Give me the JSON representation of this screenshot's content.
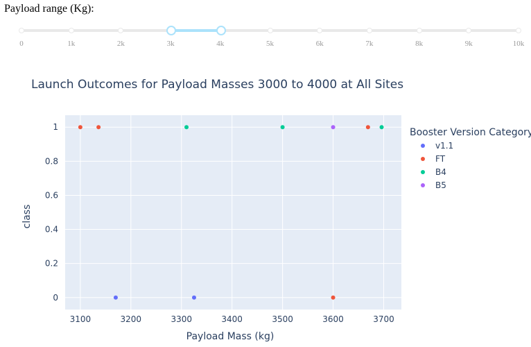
{
  "slider": {
    "label": "Payload range (Kg):",
    "min": 0,
    "max": 10000,
    "selected": [
      3000,
      4000
    ],
    "marks": [
      "0",
      "1k",
      "2k",
      "3k",
      "4k",
      "5k",
      "6k",
      "7k",
      "8k",
      "9k",
      "10k"
    ]
  },
  "chart_data": {
    "type": "scatter",
    "title": "Launch Outcomes for Payload Masses 3000 to 4000 at All Sites",
    "xlabel": "Payload Mass (kg)",
    "ylabel": "class",
    "xlim": [
      3070,
      3735
    ],
    "ylim": [
      -0.07,
      1.07
    ],
    "x_ticks": [
      3100,
      3200,
      3300,
      3400,
      3500,
      3600,
      3700
    ],
    "y_ticks": [
      0,
      0.2,
      0.4,
      0.6,
      0.8,
      1
    ],
    "y_tick_labels": [
      "0",
      "0.2",
      "0.4",
      "0.6",
      "0.8",
      "1"
    ],
    "grid": true,
    "legend_title": "Booster Version Category",
    "legend_position": "right",
    "series": [
      {
        "name": "v1.1",
        "color": "#636efa",
        "points": [
          {
            "x": 3170,
            "y": 0
          },
          {
            "x": 3325,
            "y": 0
          }
        ]
      },
      {
        "name": "FT",
        "color": "#ef553b",
        "points": [
          {
            "x": 3100,
            "y": 1
          },
          {
            "x": 3136,
            "y": 1
          },
          {
            "x": 3600,
            "y": 0
          },
          {
            "x": 3669,
            "y": 1
          }
        ]
      },
      {
        "name": "B4",
        "color": "#00cc96",
        "points": [
          {
            "x": 3310,
            "y": 1
          },
          {
            "x": 3500,
            "y": 1
          },
          {
            "x": 3696,
            "y": 1
          }
        ]
      },
      {
        "name": "B5",
        "color": "#ab63fa",
        "points": [
          {
            "x": 3600,
            "y": 1
          }
        ]
      }
    ]
  }
}
